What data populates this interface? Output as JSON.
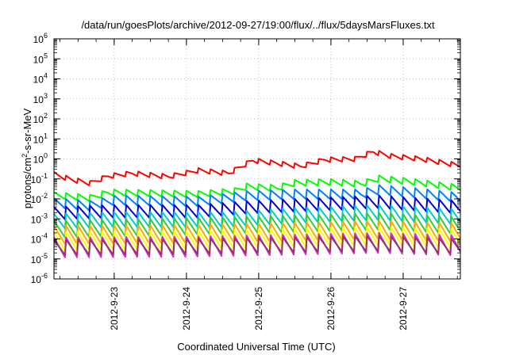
{
  "chart_data": {
    "type": "line",
    "title": "/data/run/goesPlots/archive/2012-09-27/19:00/flux/../flux/5daysMarsFluxes.txt",
    "xlabel": "Coordinated Universal Time (UTC)",
    "ylabel": {
      "pre": "protons/cm",
      "sup": "2",
      "post": "-s-sr-MeV"
    },
    "x_range": [
      "2012-09-22T04:00",
      "2012-09-27T19:00"
    ],
    "ylim": [
      1e-06,
      1000000.0
    ],
    "yscale": "log",
    "grid": true,
    "legend": "none",
    "x_ticks": [
      {
        "label": "2012-9-23",
        "t": "2012-09-23T00:00"
      },
      {
        "label": "2012-9-24",
        "t": "2012-09-24T00:00"
      },
      {
        "label": "2012-9-25",
        "t": "2012-09-25T00:00"
      },
      {
        "label": "2012-9-26",
        "t": "2012-09-26T00:00"
      },
      {
        "label": "2012-9-27",
        "t": "2012-09-27T00:00"
      }
    ],
    "y_ticks": [
      {
        "base": "10",
        "exp": "6",
        "value": 1000000.0
      },
      {
        "base": "10",
        "exp": "5",
        "value": 100000.0
      },
      {
        "base": "10",
        "exp": "4",
        "value": 10000.0
      },
      {
        "base": "10",
        "exp": "3",
        "value": 1000.0
      },
      {
        "base": "10",
        "exp": "2",
        "value": 100.0
      },
      {
        "base": "10",
        "exp": "1",
        "value": 10.0
      },
      {
        "base": "10",
        "exp": "0",
        "value": 1.0
      },
      {
        "base": "10",
        "exp": "-1",
        "value": 0.1
      },
      {
        "base": "10",
        "exp": "-2",
        "value": 0.01
      },
      {
        "base": "10",
        "exp": "-3",
        "value": 0.001
      },
      {
        "base": "10",
        "exp": "-4",
        "value": 0.0001
      },
      {
        "base": "10",
        "exp": "-5",
        "value": 1e-05
      },
      {
        "base": "10",
        "exp": "-6",
        "value": 1e-06
      }
    ],
    "series": [
      {
        "color": "#ff0000",
        "period_hours": 4,
        "trough_ratio": 0.55,
        "envelope": [
          [
            "2012-09-22T04:00",
            0.22
          ],
          [
            "2012-09-22T10:00",
            0.12
          ],
          [
            "2012-09-22T16:00",
            0.08
          ],
          [
            "2012-09-22T22:00",
            0.18
          ],
          [
            "2012-09-23T06:00",
            0.25
          ],
          [
            "2012-09-23T18:00",
            0.17
          ],
          [
            "2012-09-24T04:00",
            0.35
          ],
          [
            "2012-09-24T14:00",
            0.25
          ],
          [
            "2012-09-24T22:00",
            1.1
          ],
          [
            "2012-09-25T06:00",
            0.8
          ],
          [
            "2012-09-25T14:00",
            0.55
          ],
          [
            "2012-09-25T22:00",
            1.2
          ],
          [
            "2012-09-26T08:00",
            1.3
          ],
          [
            "2012-09-26T14:00",
            3.0
          ],
          [
            "2012-09-26T20:00",
            1.8
          ],
          [
            "2012-09-27T06:00",
            1.3
          ],
          [
            "2012-09-27T19:00",
            0.6
          ]
        ]
      },
      {
        "color": "#00ff00",
        "period_hours": 4,
        "trough_ratio": 0.45,
        "envelope": [
          [
            "2012-09-22T04:00",
            0.022
          ],
          [
            "2012-09-22T16:00",
            0.016
          ],
          [
            "2012-09-22T22:00",
            0.03
          ],
          [
            "2012-09-23T12:00",
            0.028
          ],
          [
            "2012-09-24T04:00",
            0.025
          ],
          [
            "2012-09-24T16:00",
            0.035
          ],
          [
            "2012-09-24T20:00",
            0.06
          ],
          [
            "2012-09-25T06:00",
            0.05
          ],
          [
            "2012-09-25T12:00",
            0.09
          ],
          [
            "2012-09-26T00:00",
            0.1
          ],
          [
            "2012-09-26T10:00",
            0.08
          ],
          [
            "2012-09-26T16:00",
            0.15
          ],
          [
            "2012-09-27T04:00",
            0.1
          ],
          [
            "2012-09-27T19:00",
            0.05
          ]
        ]
      },
      {
        "color": "#0080ff",
        "period_hours": 4,
        "trough_ratio": 0.3,
        "envelope": [
          [
            "2012-09-22T04:00",
            0.011
          ],
          [
            "2012-09-22T16:00",
            0.008
          ],
          [
            "2012-09-23T00:00",
            0.015
          ],
          [
            "2012-09-24T04:00",
            0.013
          ],
          [
            "2012-09-24T20:00",
            0.025
          ],
          [
            "2012-09-25T12:00",
            0.03
          ],
          [
            "2012-09-26T10:00",
            0.03
          ],
          [
            "2012-09-26T16:00",
            0.05
          ],
          [
            "2012-09-27T04:00",
            0.035
          ],
          [
            "2012-09-27T19:00",
            0.02
          ]
        ]
      },
      {
        "color": "#0000cc",
        "period_hours": 4,
        "trough_ratio": 0.2,
        "envelope": [
          [
            "2012-09-22T04:00",
            0.004
          ],
          [
            "2012-09-23T00:00",
            0.005
          ],
          [
            "2012-09-24T04:00",
            0.005
          ],
          [
            "2012-09-24T20:00",
            0.008
          ],
          [
            "2012-09-25T12:00",
            0.01
          ],
          [
            "2012-09-26T16:00",
            0.015
          ],
          [
            "2012-09-27T19:00",
            0.008
          ]
        ]
      },
      {
        "color": "#00cccc",
        "period_hours": 4,
        "trough_ratio": 0.15,
        "envelope": [
          [
            "2012-09-22T04:00",
            0.0018
          ],
          [
            "2012-09-23T00:00",
            0.0022
          ],
          [
            "2012-09-24T12:00",
            0.0022
          ],
          [
            "2012-09-25T12:00",
            0.0035
          ],
          [
            "2012-09-26T16:00",
            0.005
          ],
          [
            "2012-09-27T19:00",
            0.003
          ]
        ]
      },
      {
        "color": "#33cc33",
        "period_hours": 4,
        "trough_ratio": 0.12,
        "envelope": [
          [
            "2012-09-22T04:00",
            0.0008
          ],
          [
            "2012-09-23T12:00",
            0.001
          ],
          [
            "2012-09-25T12:00",
            0.0015
          ],
          [
            "2012-09-26T16:00",
            0.002
          ],
          [
            "2012-09-27T19:00",
            0.0012
          ]
        ]
      },
      {
        "color": "#ffaa00",
        "period_hours": 4,
        "trough_ratio": 0.1,
        "envelope": [
          [
            "2012-09-22T04:00",
            0.00045
          ],
          [
            "2012-09-24T00:00",
            0.0005
          ],
          [
            "2012-09-26T16:00",
            0.0008
          ],
          [
            "2012-09-27T19:00",
            0.0006
          ]
        ]
      },
      {
        "color": "#ffff00",
        "period_hours": 4,
        "trough_ratio": 0.1,
        "envelope": [
          [
            "2012-09-22T04:00",
            0.00022
          ],
          [
            "2012-09-24T00:00",
            0.00025
          ],
          [
            "2012-09-26T16:00",
            0.0004
          ],
          [
            "2012-09-27T19:00",
            0.0003
          ]
        ]
      },
      {
        "color": "#cc33cc",
        "period_hours": 4,
        "trough_ratio": 0.08,
        "envelope": [
          [
            "2012-09-22T04:00",
            0.00012
          ],
          [
            "2012-09-24T00:00",
            0.00013
          ],
          [
            "2012-09-26T16:00",
            0.0002
          ],
          [
            "2012-09-27T19:00",
            0.00015
          ]
        ]
      },
      {
        "color": "#993366",
        "period_hours": 4,
        "trough_ratio": 0.15,
        "envelope": [
          [
            "2012-09-22T04:00",
            9e-05
          ],
          [
            "2012-09-24T00:00",
            0.0001
          ],
          [
            "2012-09-26T16:00",
            0.00014
          ],
          [
            "2012-09-27T19:00",
            0.0001
          ]
        ]
      }
    ]
  }
}
